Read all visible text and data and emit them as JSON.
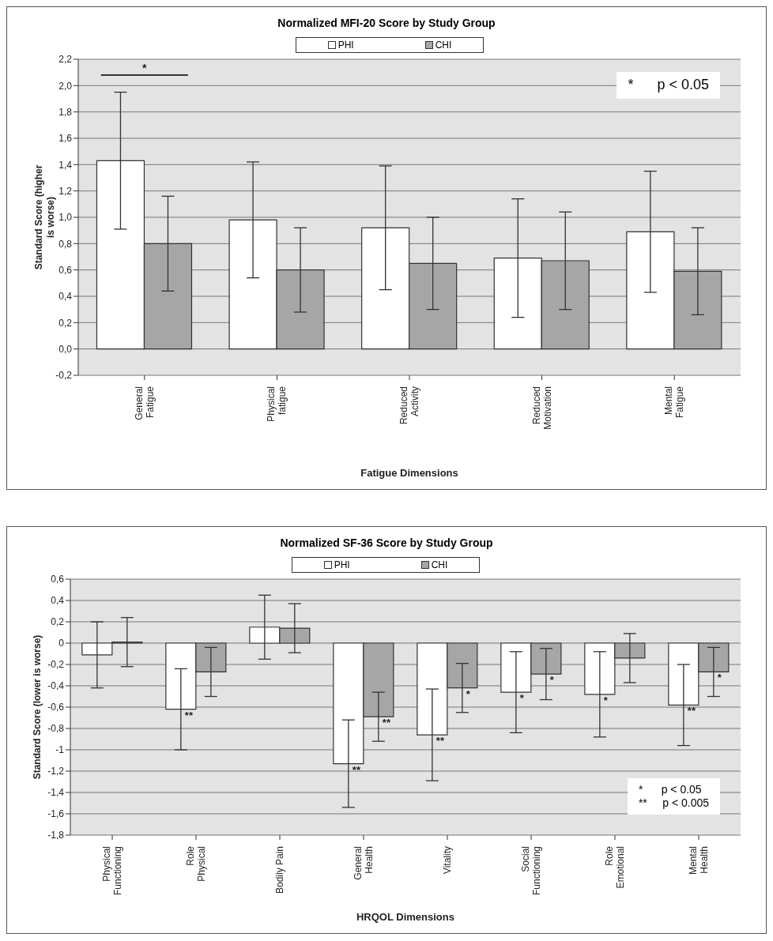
{
  "chart_data": [
    {
      "type": "bar",
      "title": "Normalized MFI-20 Score by Study Group",
      "xlabel": "Fatigue Dimensions",
      "ylabel": "Standard Score (higher is worse)",
      "categories": [
        "General Fatigue",
        "Physical fatigue",
        "Reduced Activity",
        "Reduced Motivation",
        "Mental Fatigue"
      ],
      "series": [
        {
          "name": "PHI",
          "color": "#ffffff",
          "values": [
            1.43,
            0.98,
            0.92,
            0.69,
            0.89
          ],
          "errors": [
            0.52,
            0.44,
            0.47,
            0.45,
            0.46
          ]
        },
        {
          "name": "CHI",
          "color": "#a6a6a6",
          "values": [
            0.8,
            0.6,
            0.65,
            0.67,
            0.59
          ],
          "errors": [
            0.36,
            0.32,
            0.35,
            0.37,
            0.33
          ]
        }
      ],
      "ylim": [
        -0.2,
        2.2
      ],
      "yticks": [
        {
          "value": -0.2,
          "label": "-0,2"
        },
        {
          "value": 0,
          "label": "0,0"
        },
        {
          "value": 0.2,
          "label": "0,2"
        },
        {
          "value": 0.4,
          "label": "0,4"
        },
        {
          "value": 0.6,
          "label": "0,6"
        },
        {
          "value": 0.8,
          "label": "0,8"
        },
        {
          "value": 1.0,
          "label": "1,0"
        },
        {
          "value": 1.2,
          "label": "1,2"
        },
        {
          "value": 1.4,
          "label": "1,4"
        },
        {
          "value": 1.6,
          "label": "1,6"
        },
        {
          "value": 1.8,
          "label": "1,8"
        },
        {
          "value": 2.0,
          "label": "2,0"
        },
        {
          "value": 2.2,
          "label": "2,2"
        }
      ],
      "annotations": [
        "*",
        "*      p < 0.05"
      ],
      "grid": "y",
      "legend": "top"
    },
    {
      "type": "bar",
      "title": "Normalized SF-36 Score by Study Group",
      "xlabel": "HRQOL Dimensions",
      "ylabel": "Standard Score (lower is worse)",
      "categories": [
        "Physical Functioning",
        "Role Physical",
        "Bodily Pain",
        "General Health",
        "Vitality",
        "Social Functioning",
        "Role Emotional",
        "Mental Health"
      ],
      "series": [
        {
          "name": "PHI",
          "color": "#ffffff",
          "values": [
            -0.11,
            -0.62,
            0.15,
            -1.13,
            -0.86,
            -0.46,
            -0.48,
            -0.58
          ],
          "errors": [
            0.31,
            0.38,
            0.3,
            0.41,
            0.43,
            0.38,
            0.4,
            0.38
          ],
          "value_labels": [
            null,
            "**",
            null,
            "**",
            "**",
            "*",
            "*",
            "**"
          ]
        },
        {
          "name": "CHI",
          "color": "#a6a6a6",
          "values": [
            0.01,
            -0.27,
            0.14,
            -0.69,
            -0.42,
            -0.29,
            -0.14,
            -0.27
          ],
          "errors": [
            0.23,
            0.23,
            0.23,
            0.23,
            0.23,
            0.24,
            0.23,
            0.23
          ],
          "value_labels": [
            null,
            null,
            null,
            "**",
            "*",
            "*",
            null,
            "*"
          ]
        }
      ],
      "ylim": [
        -1.8,
        0.6
      ],
      "yticks": [
        {
          "value": -1.8,
          "label": "-1,8"
        },
        {
          "value": -1.6,
          "label": "-1,6"
        },
        {
          "value": -1.4,
          "label": "-1,4"
        },
        {
          "value": -1.2,
          "label": "-1,2"
        },
        -1,
        {
          "value": -0.8,
          "label": "-0,8"
        },
        {
          "value": -0.6,
          "label": "-0,6"
        },
        {
          "value": -0.4,
          "label": "-0,4"
        },
        {
          "value": -0.2,
          "label": "-0,2"
        },
        0,
        {
          "value": 0.2,
          "label": "0,2"
        },
        {
          "value": 0.4,
          "label": "0,4"
        },
        {
          "value": 0.6,
          "label": "0,6"
        }
      ],
      "annotations": [
        "*      p < 0.05",
        "**     p < 0.005"
      ],
      "grid": "y",
      "legend": "top"
    }
  ]
}
